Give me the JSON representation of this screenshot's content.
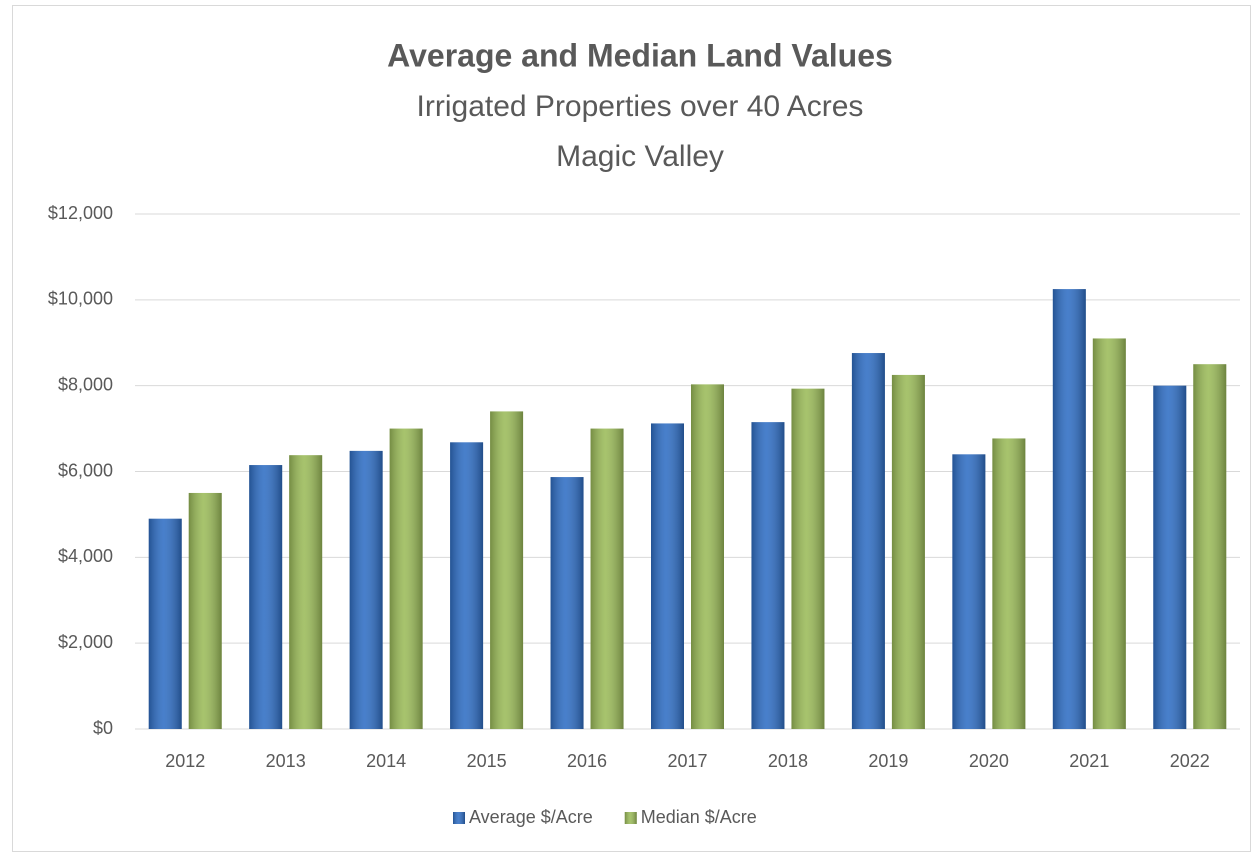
{
  "chart_data": {
    "type": "bar",
    "title": "Average and Median Land Values",
    "subtitle": [
      "Irrigated Properties over 40 Acres",
      "Magic Valley"
    ],
    "categories": [
      "2012",
      "2013",
      "2014",
      "2015",
      "2016",
      "2017",
      "2018",
      "2019",
      "2020",
      "2021",
      "2022"
    ],
    "series": [
      {
        "name": "Average $/Acre",
        "color": "#2f6ec4",
        "values": [
          4900,
          6150,
          6480,
          6680,
          5870,
          7120,
          7150,
          8760,
          6400,
          10250,
          8000
        ]
      },
      {
        "name": "Median $/Acre",
        "color": "#9bbb59",
        "values": [
          5500,
          6380,
          7000,
          7400,
          7000,
          8030,
          7930,
          8250,
          6770,
          9100,
          8500
        ]
      }
    ],
    "ylim": [
      0,
      12000
    ],
    "yticks": [
      {
        "value": 0,
        "label": "$0"
      },
      {
        "value": 2000,
        "label": "$2,000"
      },
      {
        "value": 4000,
        "label": "$4,000"
      },
      {
        "value": 6000,
        "label": "$6,000"
      },
      {
        "value": 8000,
        "label": "$8,000"
      },
      {
        "value": 10000,
        "label": "$10,000"
      },
      {
        "value": 12000,
        "label": "$12,000"
      }
    ],
    "grid": true,
    "legend": "bottom"
  }
}
